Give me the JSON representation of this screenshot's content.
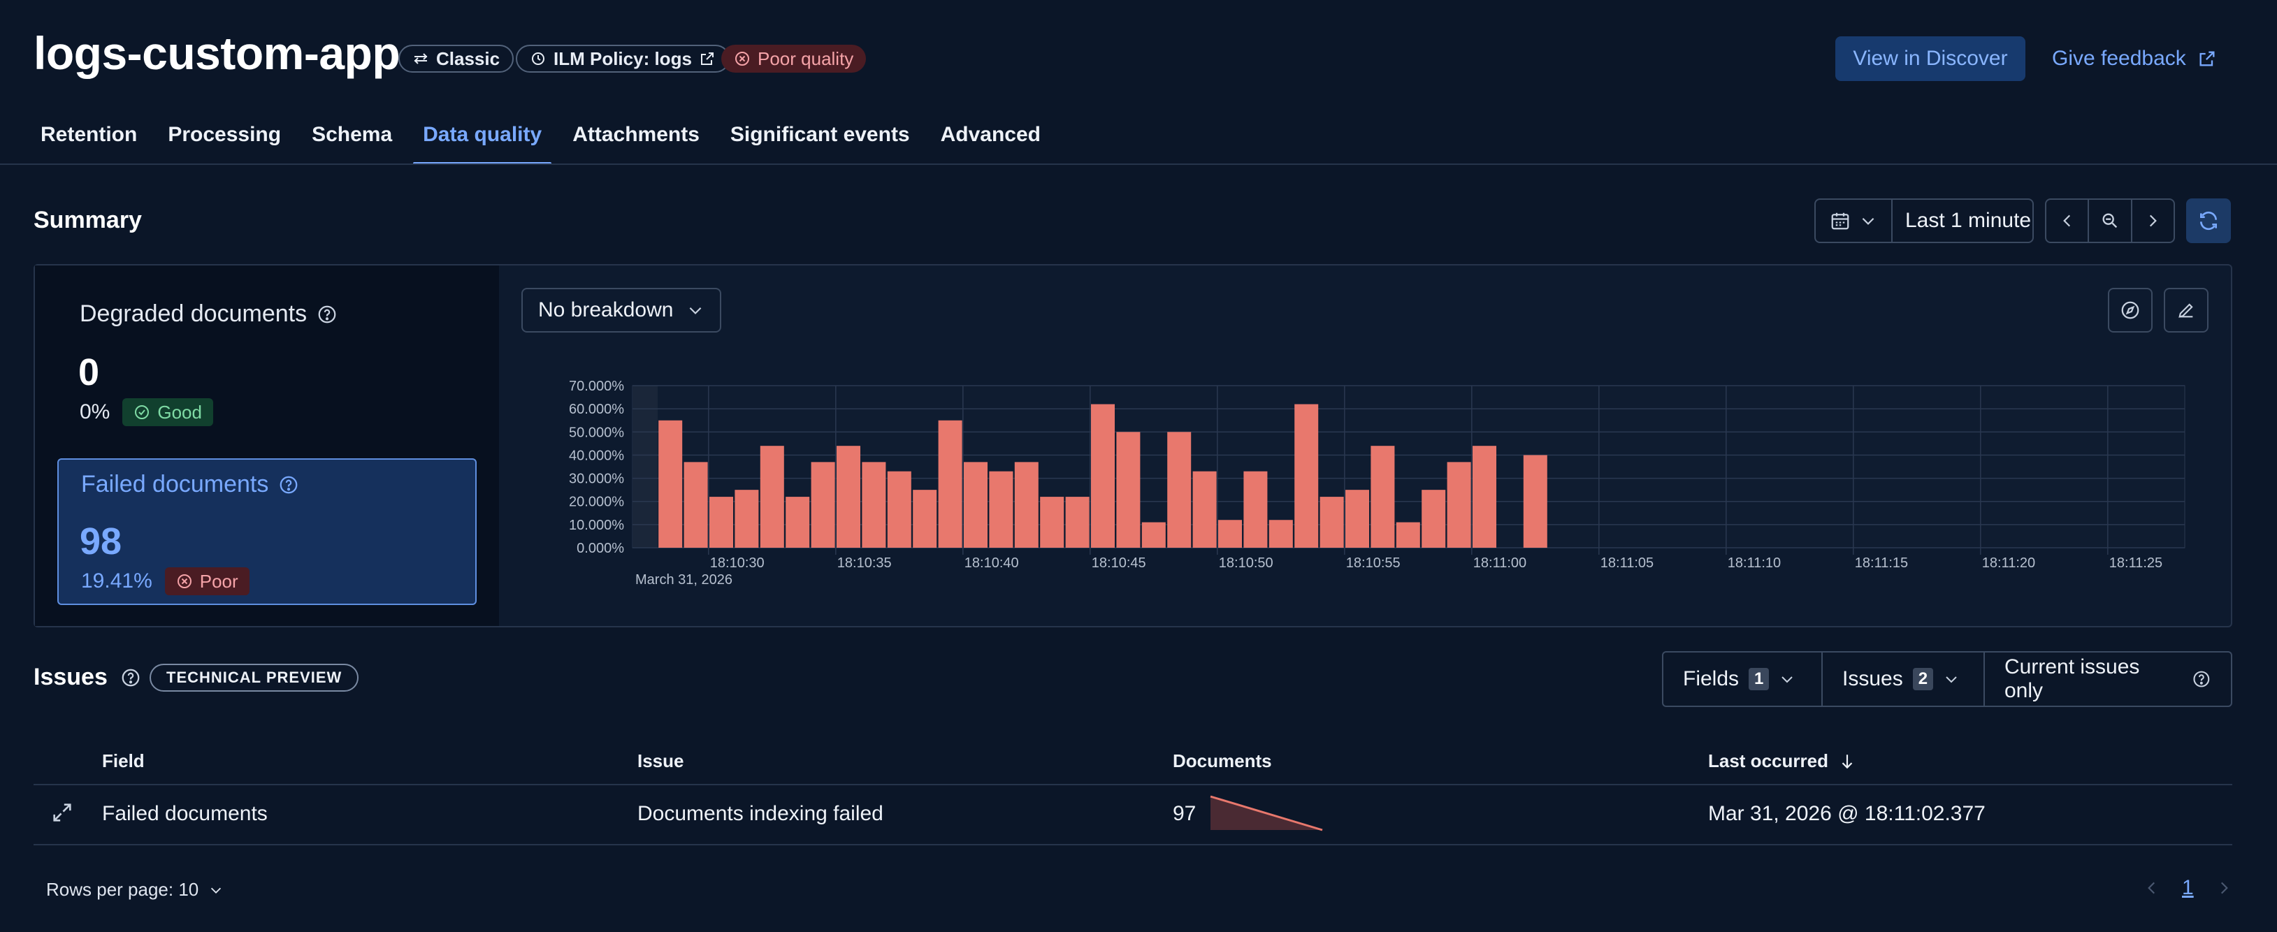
{
  "header": {
    "title": "logs-custom-app",
    "badges": {
      "mode": "Classic",
      "ilm": "ILM Policy: logs",
      "quality": "Poor quality"
    },
    "view_discover": "View in Discover",
    "give_feedback": "Give feedback"
  },
  "tabs": [
    {
      "label": "Retention",
      "active": false
    },
    {
      "label": "Processing",
      "active": false
    },
    {
      "label": "Schema",
      "active": false
    },
    {
      "label": "Data quality",
      "active": true
    },
    {
      "label": "Attachments",
      "active": false
    },
    {
      "label": "Significant events",
      "active": false
    },
    {
      "label": "Advanced",
      "active": false
    }
  ],
  "summary": {
    "title": "Summary",
    "time_range": "Last 1 minute",
    "degraded": {
      "label": "Degraded documents",
      "value": "0",
      "pct": "0%",
      "status": "Good"
    },
    "failed": {
      "label": "Failed documents",
      "value": "98",
      "pct": "19.41%",
      "status": "Poor"
    },
    "breakdown": "No breakdown"
  },
  "chart_data": {
    "type": "bar",
    "ylim": [
      0,
      70
    ],
    "y_ticks": [
      "70.000%",
      "60.000%",
      "50.000%",
      "40.000%",
      "30.000%",
      "20.000%",
      "10.000%",
      "0.000%"
    ],
    "x_ticks": [
      "18:10:30",
      "18:10:35",
      "18:10:40",
      "18:10:45",
      "18:10:50",
      "18:10:55",
      "18:11:00",
      "18:11:05",
      "18:11:10",
      "18:11:15",
      "18:11:20",
      "18:11:25"
    ],
    "x_date": "March 31, 2026",
    "bar_color": "#e8786d",
    "series": [
      {
        "values": [
          55,
          37,
          22,
          25,
          44,
          22,
          37,
          44,
          37,
          33,
          25,
          55,
          37,
          33,
          37,
          22,
          22,
          62,
          50,
          11,
          50,
          33,
          12,
          33,
          12,
          62,
          22,
          25,
          44,
          11,
          25,
          37,
          44,
          null,
          40
        ]
      }
    ]
  },
  "issues": {
    "title": "Issues",
    "tech_preview": "TECHNICAL PREVIEW",
    "filters": {
      "fields_label": "Fields",
      "fields_count": "1",
      "issues_label": "Issues",
      "issues_count": "2",
      "current_only": "Current issues only"
    },
    "columns": {
      "field": "Field",
      "issue": "Issue",
      "documents": "Documents",
      "last_occurred": "Last occurred"
    },
    "rows": [
      {
        "field": "Failed documents",
        "issue": "Documents indexing failed",
        "documents": "97",
        "last_occurred": "Mar 31, 2026 @ 18:11:02.377"
      }
    ],
    "rows_per_page": "Rows per page: 10",
    "page": "1"
  },
  "colors": {
    "accent": "#79a9ff",
    "bar": "#e8786d",
    "good": "#7fdba5",
    "poor": "#f5a3a8"
  }
}
